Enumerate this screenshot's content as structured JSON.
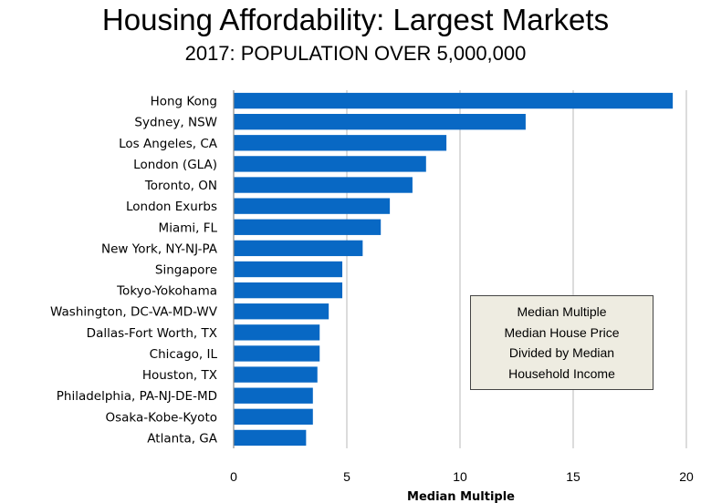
{
  "colors": {
    "bar": "#0868c4",
    "grid": "#b8b8b8",
    "legend_fill": "#eeece1"
  },
  "chart_data": {
    "type": "bar",
    "orientation": "horizontal",
    "title": "Housing Affordability: Largest Markets",
    "subtitle": "2017: POPULATION OVER 5,000,000",
    "xlabel": "Median Multiple",
    "ylabel": "",
    "xlim": [
      0,
      20
    ],
    "xticks": [
      "0",
      "5",
      "10",
      "15",
      "20"
    ],
    "grid": "vertical",
    "categories": [
      "Hong Kong",
      "Sydney, NSW",
      "Los Angeles, CA",
      "London (GLA)",
      "Toronto, ON",
      "London Exurbs",
      "Miami, FL",
      "New York, NY-NJ-PA",
      "Singapore",
      "Tokyo-Yokohama",
      "Washington, DC-VA-MD-WV",
      "Dallas-Fort Worth, TX",
      "Chicago, IL",
      "Houston, TX",
      "Philadelphia, PA-NJ-DE-MD",
      "Osaka-Kobe-Kyoto",
      "Atlanta, GA"
    ],
    "values": [
      19.4,
      12.9,
      9.4,
      8.5,
      7.9,
      6.9,
      6.5,
      5.7,
      4.8,
      4.8,
      4.2,
      3.8,
      3.8,
      3.7,
      3.5,
      3.5,
      3.2
    ],
    "annotation": [
      "Median Multiple",
      "Median House Price",
      "Divided by Median",
      "Household Income"
    ],
    "legend_position": "lower-right"
  }
}
